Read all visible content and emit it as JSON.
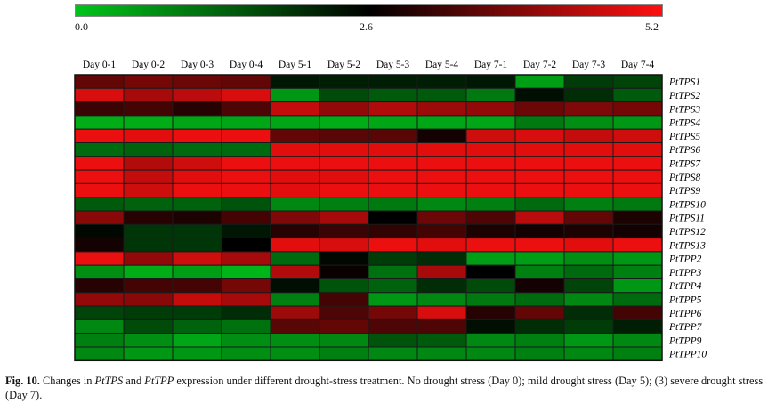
{
  "chart_data": {
    "type": "heatmap",
    "colorbar": {
      "ticks": [
        "0.0",
        "2.6",
        "5.2"
      ],
      "colors": {
        "low": "#00c41a",
        "mid": "#000000",
        "high": "#ff1010"
      }
    },
    "range": [
      0,
      5.2
    ],
    "columns": [
      "Day 0-1",
      "Day 0-2",
      "Day 0-3",
      "Day 0-4",
      "Day 5-1",
      "Day 5-2",
      "Day 5-3",
      "Day 5-4",
      "Day 7-1",
      "Day 7-2",
      "Day 7-3",
      "Day 7-4"
    ],
    "rows": [
      "PtTPS1",
      "PtTPS2",
      "PtTPS3",
      "PtTPS4",
      "PtTPS5",
      "PtTPS6",
      "PtTPS7",
      "PtTPS8",
      "PtTPS9",
      "PtTPS10",
      "PtTPS11",
      "PtTPS12",
      "PtTPS13",
      "PtTPP2",
      "PtTPP3",
      "PtTPP4",
      "PtTPP5",
      "PtTPP6",
      "PtTPP7",
      "PtTPP9",
      "PtTPP10"
    ],
    "values": [
      [
        3.6,
        3.8,
        3.7,
        3.6,
        2.3,
        2.2,
        2.2,
        2.2,
        2.3,
        0.5,
        1.8,
        1.7
      ],
      [
        4.8,
        4.3,
        4.5,
        4.8,
        0.6,
        1.6,
        1.4,
        1.4,
        1.0,
        2.4,
        2.0,
        1.4
      ],
      [
        3.2,
        3.3,
        3.0,
        3.4,
        4.6,
        4.1,
        4.4,
        4.2,
        4.1,
        3.7,
        3.9,
        3.8
      ],
      [
        0.3,
        0.3,
        0.4,
        0.4,
        0.4,
        0.3,
        0.4,
        0.4,
        0.4,
        1.0,
        0.7,
        0.6
      ],
      [
        5.0,
        4.9,
        5.0,
        5.0,
        3.6,
        3.5,
        3.5,
        2.8,
        4.7,
        4.8,
        4.6,
        4.7
      ],
      [
        1.2,
        1.3,
        1.2,
        1.2,
        4.9,
        4.9,
        4.9,
        4.9,
        4.9,
        4.9,
        4.9,
        4.9
      ],
      [
        5.0,
        4.4,
        4.7,
        5.0,
        5.0,
        5.0,
        5.0,
        5.0,
        5.0,
        5.0,
        5.0,
        5.0
      ],
      [
        5.0,
        4.6,
        4.9,
        5.0,
        4.9,
        4.9,
        5.0,
        5.0,
        5.0,
        5.0,
        5.0,
        5.0
      ],
      [
        5.0,
        4.7,
        5.0,
        5.0,
        4.9,
        5.0,
        5.0,
        5.0,
        5.0,
        5.0,
        5.0,
        5.0
      ],
      [
        1.4,
        1.3,
        1.3,
        1.5,
        0.8,
        0.9,
        1.0,
        0.8,
        0.9,
        1.2,
        0.9,
        1.0
      ],
      [
        4.0,
        3.0,
        2.9,
        3.3,
        3.9,
        4.3,
        2.6,
        3.7,
        3.4,
        4.5,
        3.6,
        2.9
      ],
      [
        2.5,
        1.9,
        1.9,
        2.3,
        3.0,
        3.2,
        3.1,
        3.3,
        2.9,
        2.8,
        2.9,
        2.8
      ],
      [
        2.8,
        1.9,
        1.9,
        2.6,
        4.9,
        4.8,
        5.0,
        4.9,
        5.0,
        5.0,
        4.9,
        5.0
      ],
      [
        5.0,
        4.1,
        4.7,
        4.3,
        1.2,
        2.5,
        1.8,
        2.0,
        0.5,
        0.5,
        0.7,
        0.6
      ],
      [
        0.7,
        0.3,
        0.5,
        0.2,
        4.4,
        2.7,
        1.1,
        4.3,
        2.6,
        0.9,
        1.2,
        0.9
      ],
      [
        3.0,
        3.3,
        3.3,
        3.8,
        2.4,
        1.5,
        1.3,
        2.0,
        1.6,
        2.8,
        1.7,
        0.6
      ],
      [
        4.1,
        4.0,
        4.6,
        4.3,
        0.9,
        3.3,
        0.6,
        0.8,
        1.0,
        1.2,
        0.8,
        1.2
      ],
      [
        1.7,
        1.8,
        1.8,
        2.0,
        4.2,
        3.4,
        3.8,
        4.8,
        3.0,
        3.6,
        2.0,
        3.3
      ],
      [
        0.8,
        1.6,
        1.3,
        1.1,
        3.5,
        3.6,
        3.4,
        3.4,
        2.4,
        2.0,
        1.8,
        2.2
      ],
      [
        0.9,
        0.7,
        0.4,
        0.7,
        0.7,
        0.8,
        1.5,
        1.4,
        0.8,
        0.9,
        0.6,
        0.8
      ],
      [
        0.8,
        0.6,
        0.6,
        0.7,
        0.7,
        0.9,
        0.8,
        0.8,
        0.8,
        0.9,
        0.8,
        0.9
      ]
    ]
  },
  "caption": {
    "prefix": "Fig. 10.",
    "parts": [
      {
        "t": "  Changes in ",
        "i": false
      },
      {
        "t": "PtTPS",
        "i": true
      },
      {
        "t": " and ",
        "i": false
      },
      {
        "t": "PtTPP",
        "i": true
      },
      {
        "t": " expression under different drought-stress treatment. No drought stress (Day 0); mild drought stress (Day 5); (3) severe drought stress (Day 7).",
        "i": false
      }
    ]
  }
}
